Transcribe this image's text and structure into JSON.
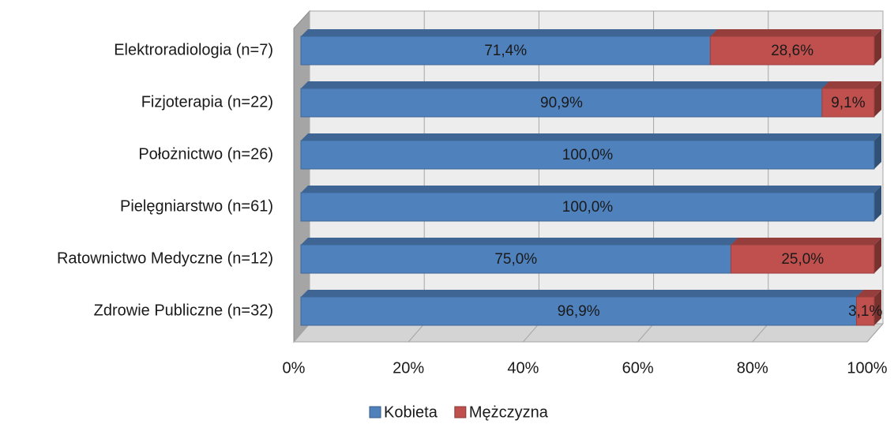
{
  "chart_data": {
    "type": "stacked-bar-horizontal",
    "categories": [
      "Elektroradiologia (n=7)",
      "Fizjoterapia (n=22)",
      "Położnictwo (n=26)",
      "Pielęgniarstwo (n=61)",
      "Ratownictwo Medyczne (n=12)",
      "Zdrowie Publiczne (n=32)"
    ],
    "series": [
      {
        "name": "Kobieta",
        "color": "#4f81bd",
        "values": [
          71.4,
          90.9,
          100,
          100,
          75,
          96.9
        ],
        "value_labels": [
          "71,4%",
          "90,9%",
          "100,0%",
          "100,0%",
          "75,0%",
          "96,9%"
        ]
      },
      {
        "name": "Mężczyzna",
        "color": "#c0504d",
        "values": [
          28.6,
          9.1,
          0,
          0,
          25,
          3.1
        ],
        "value_labels": [
          "28,6%",
          "9,1%",
          null,
          null,
          "25,0%",
          "3,1%"
        ]
      }
    ],
    "xlim": [
      0,
      100
    ],
    "xticks": [
      {
        "value": 0,
        "label": "0%"
      },
      {
        "value": 20,
        "label": "20%"
      },
      {
        "value": 40,
        "label": "40%"
      },
      {
        "value": 60,
        "label": "60%"
      },
      {
        "value": 80,
        "label": "80%"
      },
      {
        "value": 100,
        "label": "100%"
      }
    ],
    "grid": true,
    "legend": "bottom",
    "three_d": true
  }
}
